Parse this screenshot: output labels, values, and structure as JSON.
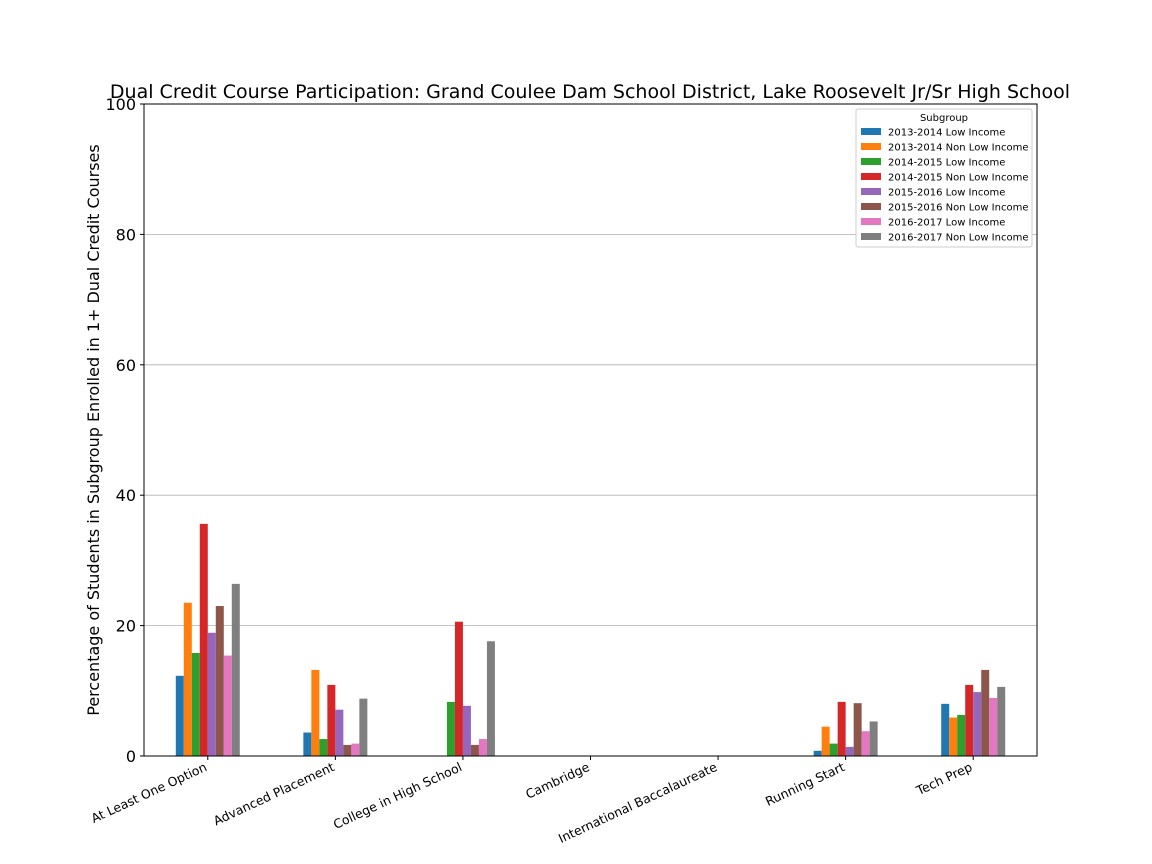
{
  "chart_data": {
    "type": "bar",
    "title": "Dual Credit Course Participation: Grand Coulee Dam School District, Lake Roosevelt Jr/Sr High School",
    "xlabel": "",
    "ylabel": "Percentage of Students in Subgroup Enrolled in 1+ Dual Credit Courses",
    "ylim": [
      0,
      100
    ],
    "yticks": [
      0,
      20,
      40,
      60,
      80,
      100
    ],
    "grid": "horizontal",
    "legend_title": "Subgroup",
    "legend_position": "top-right",
    "categories": [
      "At Least One Option",
      "Advanced Placement",
      "College in High School",
      "Cambridge",
      "International Baccalaureate",
      "Running Start",
      "Tech Prep"
    ],
    "series": [
      {
        "name": "2013-2014 Low Income",
        "color": "#1f77b4",
        "values": [
          12.3,
          3.6,
          0,
          0,
          0,
          0.8,
          8.0
        ]
      },
      {
        "name": "2013-2014 Non Low Income",
        "color": "#ff7f0e",
        "values": [
          23.5,
          13.2,
          0,
          0,
          0,
          4.5,
          5.9
        ]
      },
      {
        "name": "2014-2015 Low Income",
        "color": "#2ca02c",
        "values": [
          15.8,
          2.6,
          8.3,
          0,
          0,
          1.9,
          6.3
        ]
      },
      {
        "name": "2014-2015 Non Low Income",
        "color": "#d62728",
        "values": [
          35.6,
          10.9,
          20.6,
          0,
          0,
          8.3,
          10.9
        ]
      },
      {
        "name": "2015-2016 Low Income",
        "color": "#9467bd",
        "values": [
          18.9,
          7.1,
          7.7,
          0,
          0,
          1.4,
          9.8
        ]
      },
      {
        "name": "2015-2016 Non Low Income",
        "color": "#8c564b",
        "values": [
          23.0,
          1.7,
          1.7,
          0,
          0,
          8.1,
          13.2
        ]
      },
      {
        "name": "2016-2017 Low Income",
        "color": "#e377c2",
        "values": [
          15.4,
          1.9,
          2.6,
          0,
          0,
          3.8,
          8.9
        ]
      },
      {
        "name": "2016-2017 Non Low Income",
        "color": "#7f7f7f",
        "values": [
          26.4,
          8.8,
          17.6,
          0,
          0,
          5.3,
          10.6
        ]
      }
    ]
  }
}
